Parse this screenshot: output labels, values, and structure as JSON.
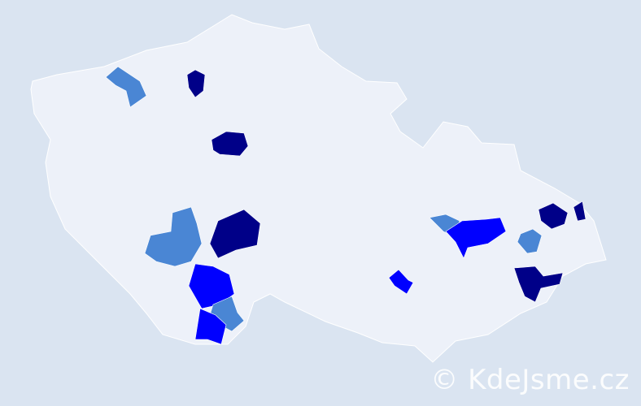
{
  "map": {
    "country_fill": "#edf1f9",
    "border_color": "#ffffff",
    "background": "#dae4f1",
    "highlight_colors": {
      "dark": "#000088",
      "bright": "#0000ff",
      "medium": "#4a86d4"
    }
  },
  "watermark": "© KdeJsme.cz"
}
